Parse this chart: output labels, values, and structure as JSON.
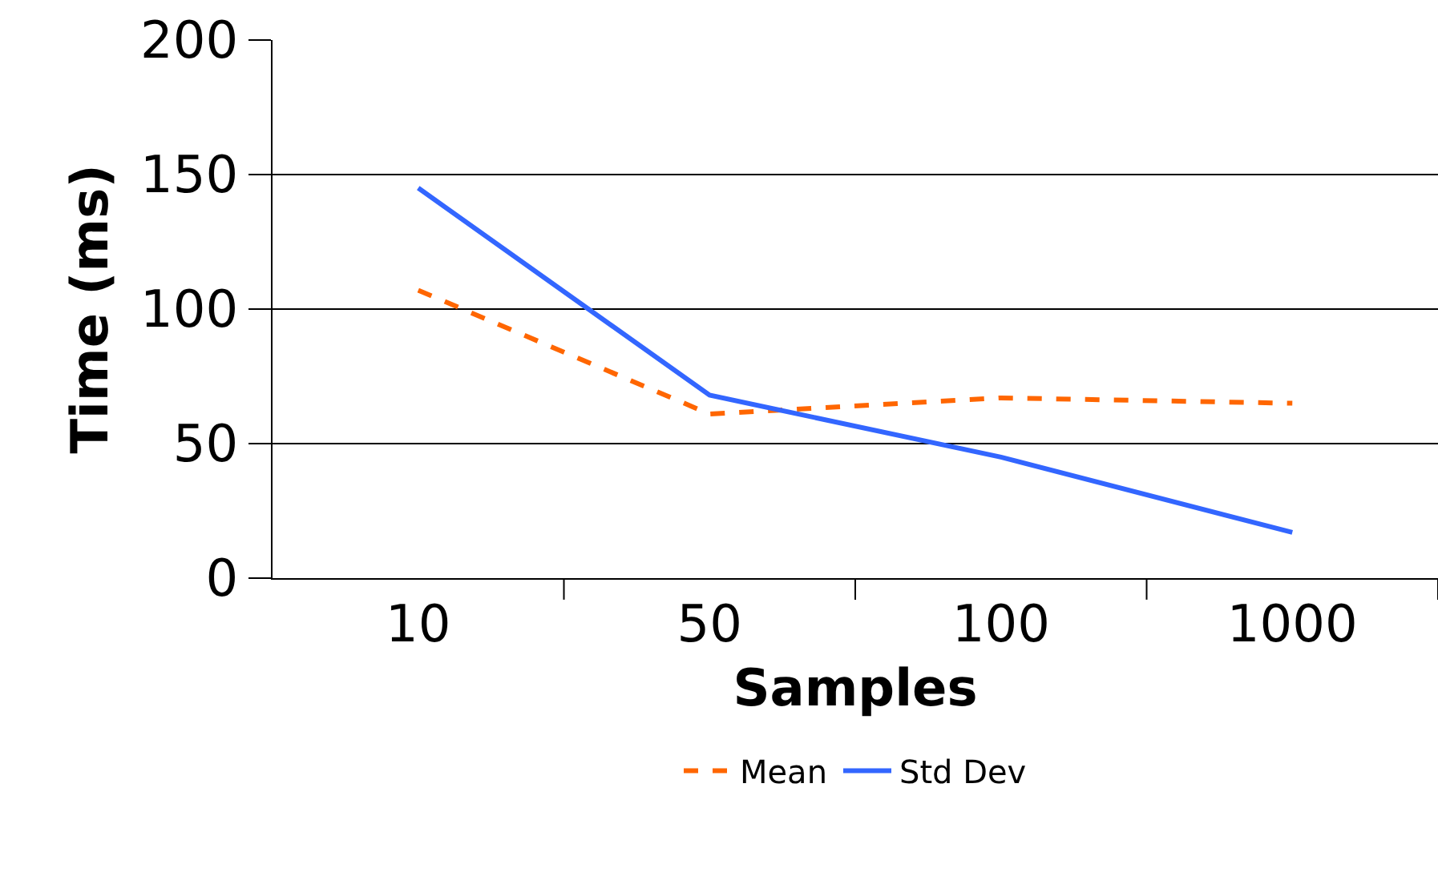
{
  "chart_data": {
    "type": "line",
    "xlabel": "Samples",
    "ylabel": "Time (ms)",
    "categories": [
      "10",
      "50",
      "100",
      "1000"
    ],
    "series": [
      {
        "name": "Mean",
        "color": "#ff6600",
        "values": [
          107,
          61,
          67,
          65
        ],
        "line_style": "dashed"
      },
      {
        "name": "Std Dev",
        "color": "#3366ff",
        "values": [
          145,
          68,
          45,
          17
        ],
        "line_style": "solid"
      }
    ],
    "ylim": [
      0,
      200
    ],
    "yticks": [
      0,
      50,
      100,
      150,
      200
    ],
    "grid": "y",
    "legend": "bottom",
    "marker": "none"
  }
}
